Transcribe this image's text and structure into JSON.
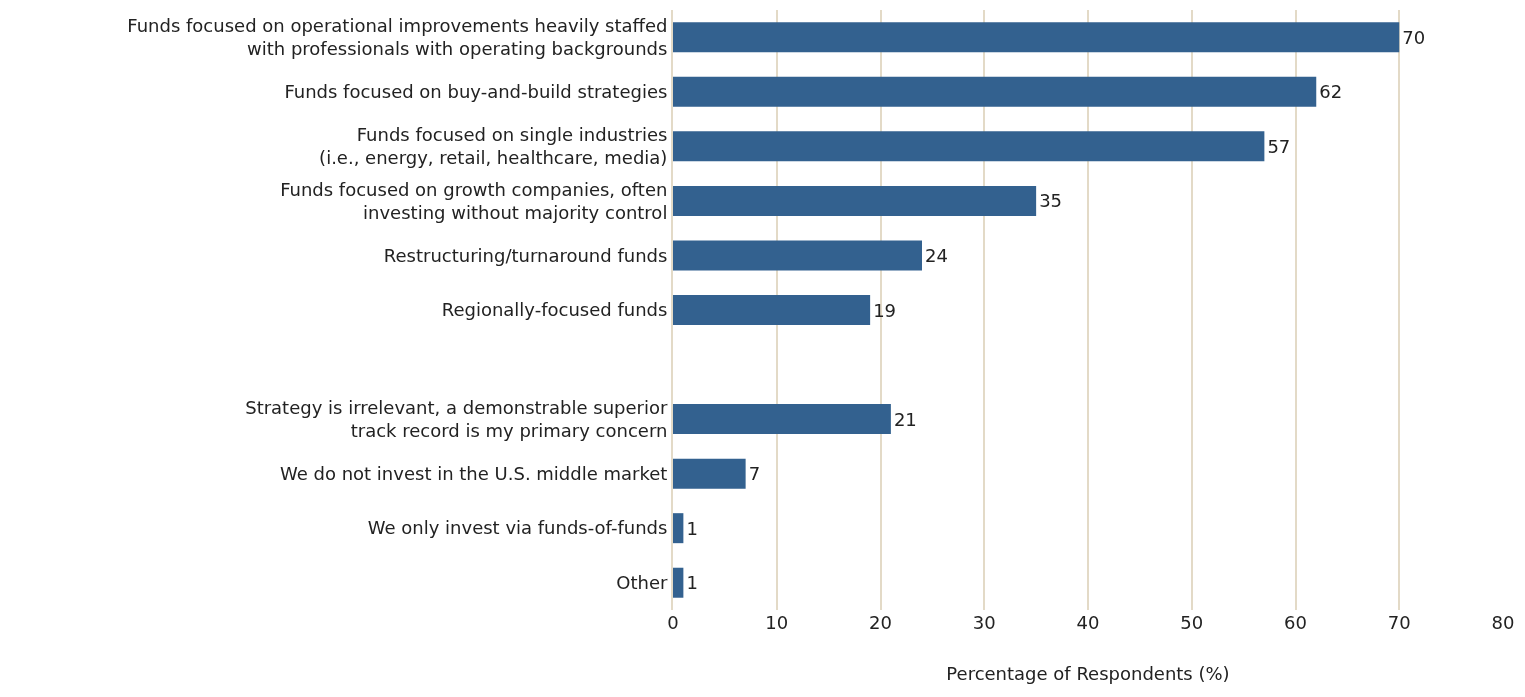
{
  "chart_data": {
    "type": "bar",
    "orientation": "horizontal",
    "categories": [
      "Funds focused on operational improvements heavily staffed\nwith professionals with operating backgrounds",
      "Funds focused on buy-and-build strategies",
      "Funds focused on single industries\n(i.e., energy, retail, healthcare, media)",
      "Funds focused on growth companies, often\ninvesting without majority control",
      "Restructuring/turnaround funds",
      "Regionally-focused funds",
      null,
      "Strategy is irrelevant, a demonstrable superior\ntrack record is my primary concern",
      "We do not invest in the U.S. middle market",
      "We only invest via funds-of-funds",
      "Other"
    ],
    "values": [
      70,
      62,
      57,
      35,
      24,
      19,
      null,
      21,
      7,
      1,
      1
    ],
    "color": "#33618f",
    "xlim": [
      0,
      80
    ],
    "xticks": [
      0,
      10,
      20,
      30,
      40,
      50,
      60,
      70,
      80
    ],
    "xlabel": "Percentage of Respondents (%)",
    "data_labels": true,
    "grid": "x"
  }
}
